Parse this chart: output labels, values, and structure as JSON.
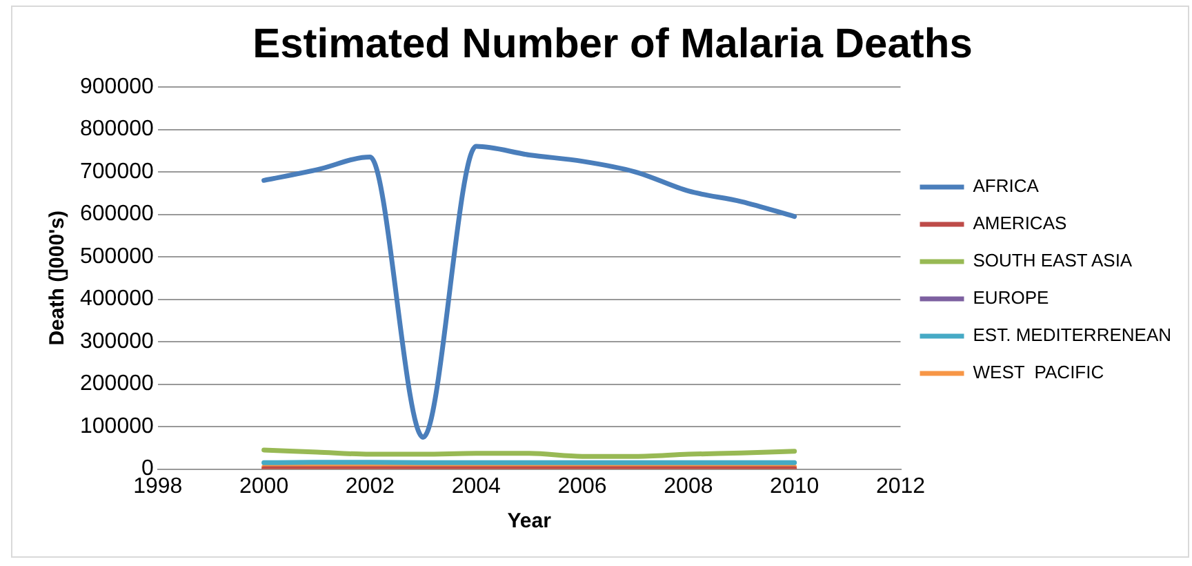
{
  "chart_data": {
    "type": "line",
    "title": "Estimated Number of Malaria Deaths",
    "xlabel": "Year",
    "ylabel": "Death (]000's)",
    "x": [
      2000,
      2001,
      2002,
      2003,
      2004,
      2005,
      2006,
      2007,
      2008,
      2009,
      2010
    ],
    "series": [
      {
        "name": "AFRICA",
        "color": "#4a7ebb",
        "values": [
          680000,
          705000,
          735000,
          75000,
          760000,
          740000,
          725000,
          700000,
          655000,
          630000,
          595000
        ]
      },
      {
        "name": "AMERICAS",
        "color": "#be4b48",
        "values": [
          1000,
          1000,
          1000,
          1000,
          1000,
          1000,
          1000,
          1000,
          1000,
          1000,
          1000
        ]
      },
      {
        "name": "SOUTH EAST ASIA",
        "color": "#98b954",
        "values": [
          45000,
          40000,
          35000,
          35000,
          37000,
          37000,
          30000,
          30000,
          35000,
          38000,
          42000
        ]
      },
      {
        "name": "EUROPE",
        "color": "#7d60a0",
        "values": [
          null,
          null,
          null,
          null,
          null,
          null,
          null,
          null,
          null,
          null,
          null
        ]
      },
      {
        "name": "EST. MEDITERRENEAN",
        "color": "#46aac5",
        "values": [
          15000,
          16000,
          16000,
          15000,
          15000,
          15000,
          15000,
          15000,
          15000,
          15000,
          15000
        ]
      },
      {
        "name": "WEST  PACIFIC",
        "color": "#f79646",
        "values": [
          5000,
          5000,
          5000,
          5000,
          5000,
          5000,
          5000,
          5000,
          5000,
          5000,
          5000
        ]
      }
    ],
    "xlim": [
      1998,
      2012
    ],
    "xticks": [
      1998,
      2000,
      2002,
      2004,
      2006,
      2008,
      2010,
      2012
    ],
    "ylim": [
      0,
      900000
    ],
    "yticks": [
      0,
      100000,
      200000,
      300000,
      400000,
      500000,
      600000,
      700000,
      800000,
      900000
    ],
    "grid": "y",
    "legend": "right",
    "marker": "none",
    "line_style": "solid"
  }
}
